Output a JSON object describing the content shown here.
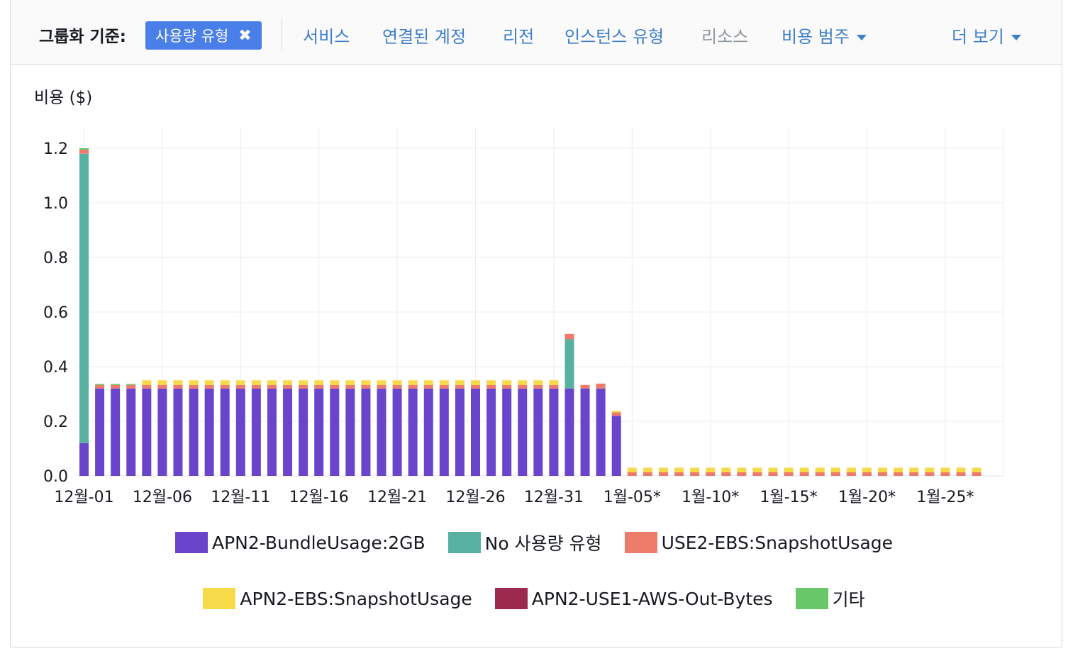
{
  "toolbar": {
    "group_label": "그룹화 기준:",
    "chip_label": "사용량 유형",
    "chip_close": "✖",
    "tabs": [
      {
        "label": "서비스",
        "disabled": false,
        "caret": false
      },
      {
        "label": "연결된 계정",
        "disabled": false,
        "caret": false
      },
      {
        "label": "리전",
        "disabled": false,
        "caret": false
      },
      {
        "label": "인스턴스 유형",
        "disabled": false,
        "caret": false
      },
      {
        "label": "리소스",
        "disabled": true,
        "caret": false
      },
      {
        "label": "비용 범주",
        "disabled": false,
        "caret": true
      }
    ],
    "more_label": "더 보기"
  },
  "chart_data": {
    "type": "bar",
    "stacked": true,
    "ylabel": "비용 ($)",
    "ylim": [
      0,
      1.2
    ],
    "yticks": [
      "0.0",
      "0.2",
      "0.4",
      "0.6",
      "0.8",
      "1.0",
      "1.2"
    ],
    "grid": true,
    "legend_position": "bottom",
    "categories": [
      "12월-01",
      "12월-02",
      "12월-03",
      "12월-04",
      "12월-05",
      "12월-06",
      "12월-07",
      "12월-08",
      "12월-09",
      "12월-10",
      "12월-11",
      "12월-12",
      "12월-13",
      "12월-14",
      "12월-15",
      "12월-16",
      "12월-17",
      "12월-18",
      "12월-19",
      "12월-20",
      "12월-21",
      "12월-22",
      "12월-23",
      "12월-24",
      "12월-25",
      "12월-26",
      "12월-27",
      "12월-28",
      "12월-29",
      "12월-30",
      "12월-31",
      "1월-01",
      "1월-02",
      "1월-03",
      "1월-04*",
      "1월-05*",
      "1월-06*",
      "1월-07*",
      "1월-08*",
      "1월-09*",
      "1월-10*",
      "1월-11*",
      "1월-12*",
      "1월-13*",
      "1월-14*",
      "1월-15*",
      "1월-16*",
      "1월-17*",
      "1월-18*",
      "1월-19*",
      "1월-20*",
      "1월-21*",
      "1월-22*",
      "1월-23*",
      "1월-24*",
      "1월-25*",
      "1월-26*",
      "1월-27*"
    ],
    "tick_labels": [
      "12월-01",
      "12월-06",
      "12월-11",
      "12월-16",
      "12월-21",
      "12월-26",
      "12월-31",
      "1월-05*",
      "1월-10*",
      "1월-15*",
      "1월-20*",
      "1월-25*"
    ],
    "series": [
      {
        "name": "APN2-BundleUsage:2GB",
        "color": "#6a45cc",
        "values": [
          0.12,
          0.32,
          0.32,
          0.32,
          0.32,
          0.32,
          0.32,
          0.32,
          0.32,
          0.32,
          0.32,
          0.32,
          0.32,
          0.32,
          0.32,
          0.32,
          0.32,
          0.32,
          0.32,
          0.32,
          0.32,
          0.32,
          0.32,
          0.32,
          0.32,
          0.32,
          0.32,
          0.32,
          0.32,
          0.32,
          0.32,
          0.32,
          0.32,
          0.32,
          0.22,
          0,
          0,
          0,
          0,
          0,
          0,
          0,
          0,
          0,
          0,
          0,
          0,
          0,
          0,
          0,
          0,
          0,
          0,
          0,
          0,
          0,
          0,
          0
        ]
      },
      {
        "name": "No 사용량 유형",
        "color": "#58b0a0",
        "values": [
          1.06,
          0,
          0,
          0,
          0,
          0,
          0,
          0,
          0,
          0,
          0,
          0,
          0,
          0,
          0,
          0,
          0,
          0,
          0,
          0,
          0,
          0,
          0,
          0,
          0,
          0,
          0,
          0,
          0,
          0,
          0,
          0.18,
          0,
          0,
          0,
          0,
          0,
          0,
          0,
          0,
          0,
          0,
          0,
          0,
          0,
          0,
          0,
          0,
          0,
          0,
          0,
          0,
          0,
          0,
          0,
          0,
          0,
          0
        ]
      },
      {
        "name": "USE2-EBS:SnapshotUsage",
        "color": "#ed7b6a",
        "values": [
          0.015,
          0.013,
          0.013,
          0.013,
          0.013,
          0.013,
          0.013,
          0.013,
          0.013,
          0.013,
          0.013,
          0.013,
          0.013,
          0.013,
          0.013,
          0.013,
          0.013,
          0.013,
          0.013,
          0.013,
          0.013,
          0.013,
          0.013,
          0.013,
          0.013,
          0.013,
          0.013,
          0.013,
          0.013,
          0.013,
          0.013,
          0.02,
          0.013,
          0.018,
          0.013,
          0.013,
          0.013,
          0.013,
          0.013,
          0.013,
          0.013,
          0.013,
          0.013,
          0.013,
          0.013,
          0.013,
          0.013,
          0.013,
          0.013,
          0.013,
          0.013,
          0.013,
          0.013,
          0.013,
          0.013,
          0.013,
          0.013,
          0.013
        ]
      },
      {
        "name": "APN2-EBS:SnapshotUsage",
        "color": "#f7da4a",
        "values": [
          0,
          0,
          0,
          0,
          0.017,
          0.017,
          0.017,
          0.017,
          0.017,
          0.017,
          0.017,
          0.017,
          0.017,
          0.017,
          0.017,
          0.017,
          0.017,
          0.017,
          0.017,
          0.017,
          0.017,
          0.017,
          0.017,
          0.017,
          0.017,
          0.017,
          0.017,
          0.017,
          0.017,
          0.017,
          0.017,
          0,
          0,
          0,
          0.005,
          0.017,
          0.017,
          0.017,
          0.017,
          0.017,
          0.017,
          0.017,
          0.017,
          0.017,
          0.017,
          0.017,
          0.017,
          0.017,
          0.017,
          0.017,
          0.017,
          0.017,
          0.017,
          0.017,
          0.017,
          0.017,
          0.017,
          0.017
        ]
      },
      {
        "name": "APN2-USE1-AWS-Out-Bytes",
        "color": "#9b2a4e",
        "values": [
          0,
          0,
          0,
          0,
          0,
          0,
          0,
          0,
          0,
          0,
          0,
          0,
          0,
          0,
          0,
          0,
          0,
          0,
          0,
          0,
          0,
          0,
          0,
          0,
          0,
          0,
          0,
          0,
          0,
          0,
          0,
          0,
          0,
          0,
          0,
          0,
          0,
          0,
          0,
          0,
          0,
          0,
          0,
          0,
          0,
          0,
          0,
          0,
          0,
          0,
          0,
          0,
          0,
          0,
          0,
          0,
          0,
          0
        ]
      },
      {
        "name": "기타",
        "color": "#68c768",
        "values": [
          0.005,
          0.004,
          0.004,
          0.004,
          0,
          0,
          0,
          0,
          0,
          0,
          0,
          0,
          0,
          0,
          0,
          0,
          0,
          0,
          0,
          0,
          0,
          0,
          0,
          0,
          0,
          0,
          0,
          0,
          0,
          0,
          0,
          0,
          0,
          0,
          0,
          0,
          0,
          0,
          0,
          0,
          0,
          0,
          0,
          0,
          0,
          0,
          0,
          0,
          0,
          0,
          0,
          0,
          0,
          0,
          0,
          0,
          0,
          0
        ]
      }
    ]
  }
}
